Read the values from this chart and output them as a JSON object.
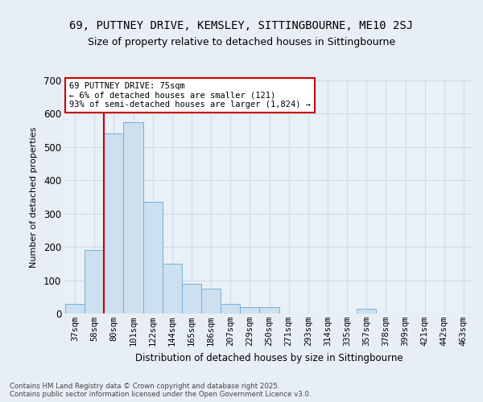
{
  "title1": "69, PUTTNEY DRIVE, KEMSLEY, SITTINGBOURNE, ME10 2SJ",
  "title2": "Size of property relative to detached houses in Sittingbourne",
  "xlabel": "Distribution of detached houses by size in Sittingbourne",
  "ylabel": "Number of detached properties",
  "bar_labels": [
    "37sqm",
    "58sqm",
    "80sqm",
    "101sqm",
    "122sqm",
    "144sqm",
    "165sqm",
    "186sqm",
    "207sqm",
    "229sqm",
    "250sqm",
    "271sqm",
    "293sqm",
    "314sqm",
    "335sqm",
    "357sqm",
    "378sqm",
    "399sqm",
    "421sqm",
    "442sqm",
    "463sqm"
  ],
  "bar_values": [
    30,
    190,
    540,
    575,
    335,
    150,
    90,
    75,
    30,
    20,
    20,
    0,
    0,
    0,
    0,
    15,
    0,
    0,
    0,
    0,
    0
  ],
  "bar_color": "#cce0f0",
  "bar_edge_color": "#7ab0d4",
  "vline_x": 1.5,
  "vline_color": "#cc0000",
  "annotation_text": "69 PUTTNEY DRIVE: 75sqm\n← 6% of detached houses are smaller (121)\n93% of semi-detached houses are larger (1,824) →",
  "annotation_box_color": "#ffffff",
  "annotation_box_edge": "#cc0000",
  "ylim": [
    0,
    700
  ],
  "yticks": [
    0,
    100,
    200,
    300,
    400,
    500,
    600,
    700
  ],
  "footnote": "Contains HM Land Registry data © Crown copyright and database right 2025.\nContains public sector information licensed under the Open Government Licence v3.0.",
  "bg_color": "#e8eef5",
  "plot_bg_color": "#eaf0f7",
  "title1_fontsize": 10,
  "title2_fontsize": 9,
  "grid_color": "#d0dce8"
}
